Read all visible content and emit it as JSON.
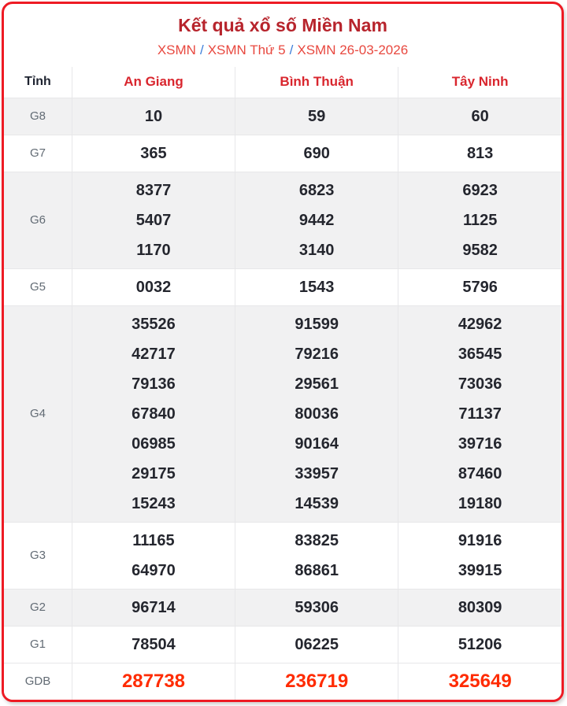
{
  "title": "Kết quả xổ số Miền Nam",
  "breadcrumb": {
    "separator": "/",
    "items": [
      "XSMN",
      "XSMN Thứ 5",
      "XSMN 26-03-2026"
    ]
  },
  "table": {
    "header": [
      "Tỉnh",
      "An Giang",
      "Bình Thuận",
      "Tây Ninh"
    ],
    "rows": [
      {
        "label": "G8",
        "cells": [
          [
            "10"
          ],
          [
            "59"
          ],
          [
            "60"
          ]
        ]
      },
      {
        "label": "G7",
        "cells": [
          [
            "365"
          ],
          [
            "690"
          ],
          [
            "813"
          ]
        ]
      },
      {
        "label": "G6",
        "cells": [
          [
            "8377",
            "5407",
            "1170"
          ],
          [
            "6823",
            "9442",
            "3140"
          ],
          [
            "6923",
            "1125",
            "9582"
          ]
        ]
      },
      {
        "label": "G5",
        "cells": [
          [
            "0032"
          ],
          [
            "1543"
          ],
          [
            "5796"
          ]
        ]
      },
      {
        "label": "G4",
        "cells": [
          [
            "35526",
            "42717",
            "79136",
            "67840",
            "06985",
            "29175",
            "15243"
          ],
          [
            "91599",
            "79216",
            "29561",
            "80036",
            "90164",
            "33957",
            "14539"
          ],
          [
            "42962",
            "36545",
            "73036",
            "71137",
            "39716",
            "87460",
            "19180"
          ]
        ]
      },
      {
        "label": "G3",
        "cells": [
          [
            "11165",
            "64970"
          ],
          [
            "83825",
            "86861"
          ],
          [
            "91916",
            "39915"
          ]
        ]
      },
      {
        "label": "G2",
        "cells": [
          [
            "96714"
          ],
          [
            "59306"
          ],
          [
            "80309"
          ]
        ]
      },
      {
        "label": "G1",
        "cells": [
          [
            "78504"
          ],
          [
            "06225"
          ],
          [
            "51206"
          ]
        ]
      },
      {
        "label": "GDB",
        "cells": [
          [
            "287738"
          ],
          [
            "236719"
          ],
          [
            "325649"
          ]
        ],
        "highlight": true
      }
    ]
  },
  "colors": {
    "card_border": "#ee1b24",
    "title_red": "#b7242c",
    "header_red": "#d9262e",
    "breadcrumb_link": "#e8483f",
    "breadcrumb_separator": "#3c7ed9",
    "stripe_gray": "#f1f1f2",
    "number_dark": "#24262e",
    "gdb_red": "#ff2b01"
  }
}
